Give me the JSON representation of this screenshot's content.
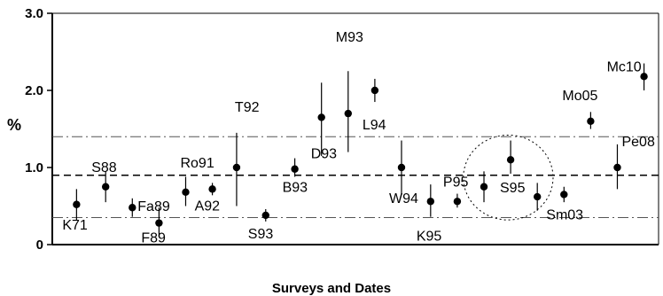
{
  "chart_data": {
    "type": "scatter",
    "ylabel": "%",
    "xlabel": "Surveys and Dates",
    "ylim": [
      0,
      3.0
    ],
    "xlim": [
      0,
      25
    ],
    "y_ticks": [
      "0",
      "1.0",
      "2.0",
      "3.0"
    ],
    "y_tick_values": [
      0,
      1.0,
      2.0,
      3.0
    ],
    "reference_lines": [
      {
        "y": 1.4,
        "style": "dash-dot"
      },
      {
        "y": 0.9,
        "style": "dashed"
      },
      {
        "y": 0.35,
        "style": "dash-dot"
      }
    ],
    "points": [
      {
        "label": "K71",
        "x": 1.0,
        "y": 0.52,
        "low": 0.32,
        "high": 0.72
      },
      {
        "label": "S88",
        "x": 2.2,
        "y": 0.75,
        "low": 0.55,
        "high": 0.95
      },
      {
        "label": "Fa89",
        "x": 3.3,
        "y": 0.48,
        "low": 0.36,
        "high": 0.6
      },
      {
        "label": "F89",
        "x": 4.4,
        "y": 0.28,
        "low": 0.1,
        "high": 0.48
      },
      {
        "label": "Ro91",
        "x": 5.5,
        "y": 0.68,
        "low": 0.5,
        "high": 0.88
      },
      {
        "label": "A92",
        "x": 6.6,
        "y": 0.72,
        "low": 0.64,
        "high": 0.8
      },
      {
        "label": "T92",
        "x": 7.6,
        "y": 1.0,
        "low": 0.5,
        "high": 1.45
      },
      {
        "label": "S93",
        "x": 8.8,
        "y": 0.38,
        "low": 0.3,
        "high": 0.46
      },
      {
        "label": "B93",
        "x": 10.0,
        "y": 0.98,
        "low": 0.88,
        "high": 1.12
      },
      {
        "label": "D93",
        "x": 11.1,
        "y": 1.65,
        "low": 1.15,
        "high": 2.1
      },
      {
        "label": "M93",
        "x": 12.2,
        "y": 1.7,
        "low": 1.2,
        "high": 2.25
      },
      {
        "label": "L94",
        "x": 13.3,
        "y": 2.0,
        "low": 1.85,
        "high": 2.15
      },
      {
        "label": "W94",
        "x": 14.4,
        "y": 1.0,
        "low": 0.65,
        "high": 1.35
      },
      {
        "label": "K95",
        "x": 15.6,
        "y": 0.56,
        "low": 0.36,
        "high": 0.78
      },
      {
        "label": "P95",
        "x": 16.7,
        "y": 0.56,
        "low": 0.48,
        "high": 0.66
      },
      {
        "label": "S95",
        "x": 17.8,
        "y": 0.75,
        "low": 0.55,
        "high": 0.95
      },
      {
        "label": "",
        "x": 18.9,
        "y": 1.1,
        "low": 0.92,
        "high": 1.35
      },
      {
        "label": "",
        "x": 20.0,
        "y": 0.62,
        "low": 0.44,
        "high": 0.8
      },
      {
        "label": "Sm03",
        "x": 21.1,
        "y": 0.65,
        "low": 0.55,
        "high": 0.75
      },
      {
        "label": "Mo05",
        "x": 22.2,
        "y": 1.6,
        "low": 1.5,
        "high": 1.72
      },
      {
        "label": "Pe08",
        "x": 23.3,
        "y": 1.0,
        "low": 0.72,
        "high": 1.3
      },
      {
        "label": "Mc10",
        "x": 24.4,
        "y": 2.18,
        "low": 2.0,
        "high": 2.35
      }
    ],
    "circle_annotation": {
      "x": 18.8,
      "y": 0.87,
      "rx": 1.85,
      "ry": 0.55,
      "style": "dotted"
    }
  }
}
